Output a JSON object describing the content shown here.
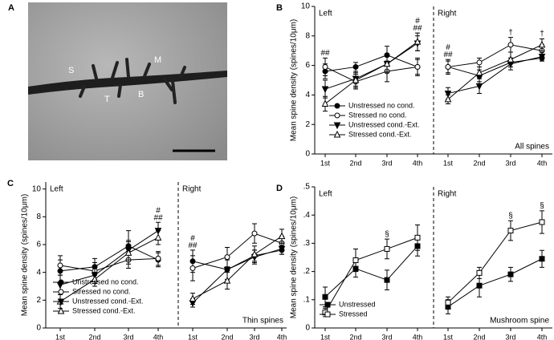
{
  "image_panel": {
    "panel": "A",
    "labels": [
      "S",
      "M",
      "T",
      "B"
    ]
  },
  "chart_data": [
    {
      "type": "line",
      "panel": "B",
      "ylabel": "Mean spine density (spines/10μm)",
      "sections": [
        "Left",
        "Right"
      ],
      "corner_label": "All spines",
      "categories": [
        "1st",
        "2nd",
        "3rd",
        "4th",
        "1st",
        "2nd",
        "3rd",
        "4th"
      ],
      "ylim": [
        0,
        10
      ],
      "yticks": [
        0,
        2,
        4,
        6,
        8,
        10
      ],
      "legend": "lower left",
      "series": [
        {
          "name": "Unstressed no cond.",
          "marker": "circle",
          "color": "#000000",
          "values": [
            5.6,
            5.9,
            6.7,
            5.9,
            5.9,
            5.3,
            6.2,
            6.5
          ],
          "errors": [
            0.5,
            0.3,
            0.6,
            0.5,
            0.4,
            0.4,
            0.3,
            0.2
          ]
        },
        {
          "name": "Stressed no cond.",
          "marker": "circle",
          "color": "#ffffff",
          "values": [
            5.9,
            4.9,
            5.6,
            5.9,
            5.9,
            6.2,
            7.4,
            7.0
          ],
          "errors": [
            0.6,
            0.5,
            0.7,
            0.6,
            0.5,
            0.3,
            0.5,
            0.4
          ]
        },
        {
          "name": "Unstressed cond.-Ext.",
          "marker": "triangle-down",
          "color": "#000000",
          "values": [
            4.4,
            5.1,
            6.1,
            7.5,
            4.1,
            4.6,
            6.1,
            6.6
          ],
          "errors": [
            0.6,
            0.5,
            0.5,
            0.5,
            0.4,
            0.5,
            0.4,
            0.3
          ]
        },
        {
          "name": "Stressed cond.-Ext.",
          "marker": "triangle-up",
          "color": "#ffffff",
          "values": [
            3.4,
            5.0,
            6.1,
            7.6,
            3.7,
            5.5,
            6.4,
            7.4
          ],
          "errors": [
            0.5,
            0.5,
            0.6,
            0.6,
            0.3,
            0.4,
            0.5,
            0.4
          ]
        }
      ],
      "annotations": [
        {
          "text": "##",
          "index": 0
        },
        {
          "text": "#\n##",
          "index": 3
        },
        {
          "text": "#\n##",
          "index": 4
        },
        {
          "text": "†",
          "index": 6
        },
        {
          "text": "†",
          "index": 7
        }
      ]
    },
    {
      "type": "line",
      "panel": "C",
      "ylabel": "Mean spine density (spines/10μm)",
      "sections": [
        "Left",
        "Right"
      ],
      "corner_label": "Thin spines",
      "categories": [
        "1st",
        "2nd",
        "3rd",
        "4th",
        "1st",
        "2nd",
        "3rd",
        "4th"
      ],
      "ylim": [
        0,
        10.5
      ],
      "yticks": [
        0,
        2,
        4,
        6,
        8,
        10
      ],
      "legend": "lower left",
      "series": [
        {
          "name": "Unstressed no cond.",
          "marker": "circle",
          "color": "#000000",
          "values": [
            4.1,
            4.4,
            5.9,
            4.9,
            4.8,
            4.2,
            5.2,
            5.6
          ],
          "errors": [
            0.8,
            0.6,
            1.1,
            0.5,
            0.8,
            0.8,
            0.4,
            0.3
          ]
        },
        {
          "name": "Stressed no cond.",
          "marker": "circle",
          "color": "#ffffff",
          "values": [
            4.5,
            4.1,
            4.9,
            5.0,
            4.3,
            5.1,
            6.8,
            6.1
          ],
          "errors": [
            0.7,
            0.6,
            0.6,
            0.5,
            0.9,
            0.7,
            0.7,
            0.5
          ]
        },
        {
          "name": "Unstressed cond.-Ext.",
          "marker": "triangle-down",
          "color": "#000000",
          "values": [
            3.1,
            3.8,
            5.6,
            7.0,
            1.8,
            4.2,
            5.1,
            5.7
          ],
          "errors": [
            0.7,
            0.6,
            0.7,
            0.6,
            0.3,
            0.7,
            0.5,
            0.4
          ]
        },
        {
          "name": "Stressed cond.-Ext.",
          "marker": "triangle-up",
          "color": "#ffffff",
          "values": [
            1.9,
            3.5,
            5.4,
            6.5,
            2.1,
            3.4,
            5.3,
            6.6
          ],
          "errors": [
            0.5,
            0.5,
            0.8,
            0.5,
            0.4,
            0.6,
            0.6,
            0.5
          ]
        }
      ],
      "annotations": [
        {
          "text": "#\n##",
          "index": 3
        },
        {
          "text": "#\n##",
          "index": 4
        }
      ]
    },
    {
      "type": "line",
      "panel": "D",
      "ylabel": "Mean spine density (spines/10μm)",
      "sections": [
        "Left",
        "Right"
      ],
      "corner_label": "Mushroom spine",
      "categories": [
        "1st",
        "2nd",
        "3rd",
        "4th",
        "1st",
        "2nd",
        "3rd",
        "4th"
      ],
      "ylim": [
        0,
        0.5
      ],
      "yticks": [
        0,
        {
          "value": 0.1,
          "label": ".1"
        },
        {
          "value": 0.2,
          "label": ".2"
        },
        {
          "value": 0.3,
          "label": ".3"
        },
        {
          "value": 0.4,
          "label": ".4"
        },
        {
          "value": 0.5,
          "label": ".5"
        }
      ],
      "legend": "lower left",
      "series": [
        {
          "name": "Unstressed",
          "marker": "square",
          "color": "#000000",
          "values": [
            0.11,
            0.21,
            0.17,
            0.29,
            0.075,
            0.15,
            0.19,
            0.245
          ],
          "errors": [
            0.035,
            0.03,
            0.035,
            0.035,
            0.025,
            0.04,
            0.025,
            0.03
          ]
        },
        {
          "name": "Stressed",
          "marker": "square",
          "color": "#ffffff",
          "values": [
            0.055,
            0.24,
            0.28,
            0.32,
            0.09,
            0.195,
            0.345,
            0.375
          ],
          "errors": [
            0.015,
            0.04,
            0.035,
            0.045,
            0.02,
            0.02,
            0.035,
            0.04
          ]
        }
      ],
      "annotations": [
        {
          "text": "§",
          "index": 2
        },
        {
          "text": "§",
          "index": 6
        },
        {
          "text": "§",
          "index": 7
        }
      ]
    }
  ]
}
